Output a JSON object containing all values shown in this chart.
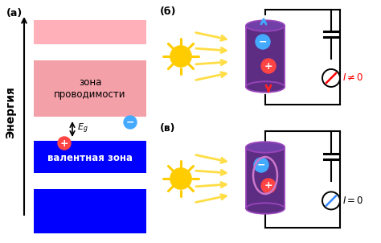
{
  "bg_color": "#ffffff",
  "panel_a_label": "(а)",
  "panel_b_label": "(б)",
  "panel_v_label": "(в)",
  "energy_label": "Энергия",
  "cond_band_label": "зона\nпроводимости",
  "val_band_label": "валентная зона",
  "Eg_label": "$E_g$",
  "I_not_zero": "$I \\neq 0$",
  "I_zero": "$I = 0$",
  "pink_light": "#ffb0b8",
  "pink_cond": "#f4a0a8",
  "blue_val": "#0000ff",
  "purple_cyl": "#5c2d82",
  "purple_top": "#7040a8",
  "sun_color": "#ffcc00",
  "sun_edge": "#ddaa00",
  "arrow_yellow": "#ffdd44",
  "arrow_blue": "#44aaff",
  "arrow_red": "#ff2222",
  "electron_color": "#44aaff",
  "hole_color": "#ff4444",
  "ellipse_color": "#cc77cc"
}
